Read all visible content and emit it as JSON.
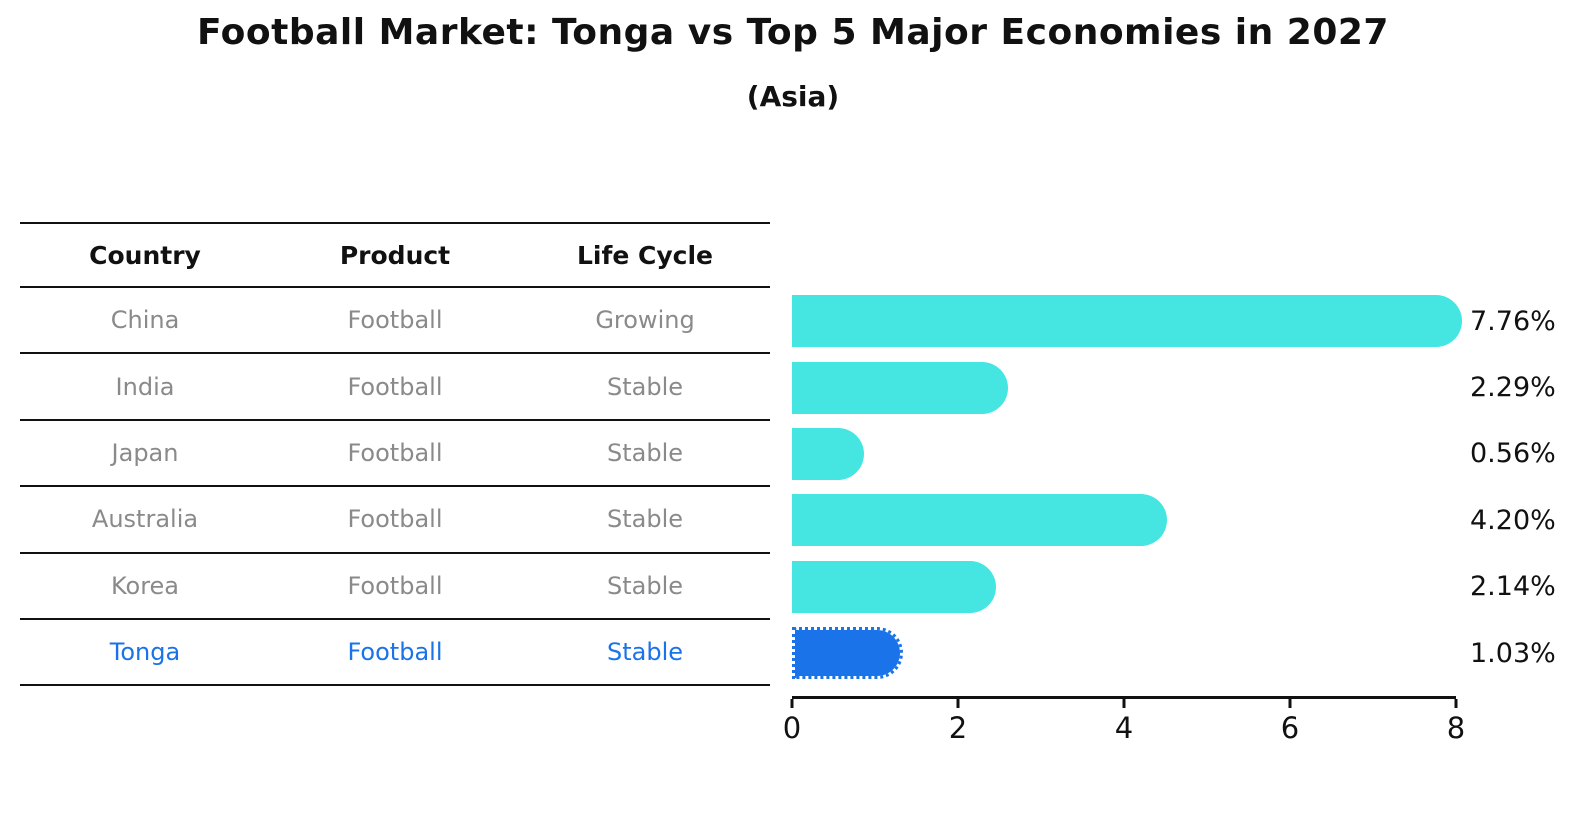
{
  "title": "Football Market: Tonga vs Top 5 Major Economies in 2027",
  "subtitle": "(Asia)",
  "table": {
    "headers": [
      "Country",
      "Product",
      "Life Cycle"
    ],
    "rows": [
      {
        "country": "China",
        "product": "Football",
        "life_cycle": "Growing",
        "highlight": false
      },
      {
        "country": "India",
        "product": "Football",
        "life_cycle": "Stable",
        "highlight": false
      },
      {
        "country": "Japan",
        "product": "Football",
        "life_cycle": "Stable",
        "highlight": false
      },
      {
        "country": "Australia",
        "product": "Football",
        "life_cycle": "Stable",
        "highlight": false
      },
      {
        "country": "Korea",
        "product": "Football",
        "life_cycle": "Stable",
        "highlight": false
      },
      {
        "country": "Tonga",
        "product": "Football",
        "life_cycle": "Stable",
        "highlight": true
      }
    ]
  },
  "chart_data": {
    "type": "bar",
    "orientation": "horizontal",
    "title": "Football Market: Tonga vs Top 5 Major Economies in 2027",
    "subtitle": "(Asia)",
    "categories": [
      "China",
      "India",
      "Japan",
      "Australia",
      "Korea",
      "Tonga"
    ],
    "values": [
      7.76,
      2.29,
      0.56,
      4.2,
      2.14,
      1.03
    ],
    "value_labels": [
      "7.76%",
      "2.29%",
      "0.56%",
      "4.20%",
      "2.14%",
      "1.03%"
    ],
    "xlim": [
      0,
      8
    ],
    "x_ticks": [
      "0",
      "2",
      "4",
      "6",
      "8"
    ],
    "grid": false,
    "legend": false,
    "bar_color": "#45e5e1",
    "highlight_color": "#1a73e8",
    "highlight_index": 5
  },
  "colors": {
    "bar_cyan": "#45e5e1",
    "highlight_blue": "#1a73e8",
    "table_text_gray": "#8a8a8a",
    "line_black": "#111111"
  }
}
